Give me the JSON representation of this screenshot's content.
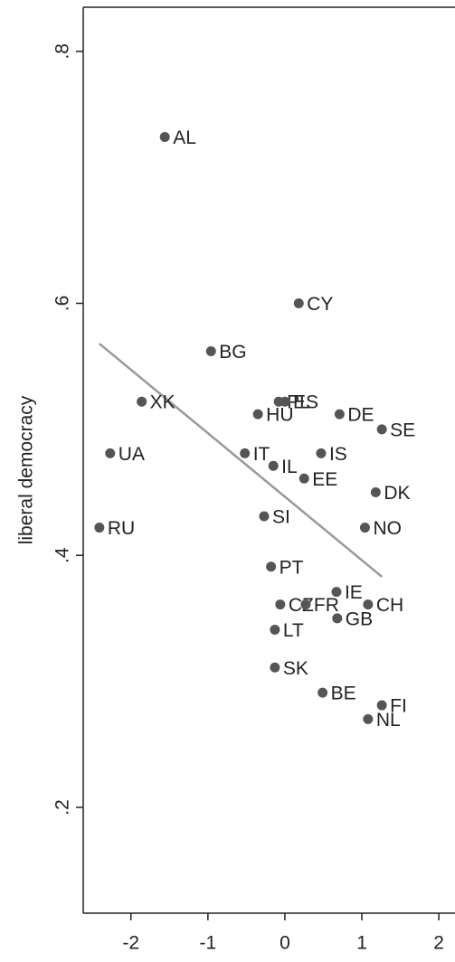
{
  "chart_data": {
    "type": "scatter",
    "ylabel": "liberal democracy",
    "xlim": [
      -2.62,
      2.21
    ],
    "ylim": [
      0.116,
      0.835
    ],
    "xticks": [
      -2,
      -1,
      0,
      1,
      2
    ],
    "yticks": [
      {
        "value": 0.2,
        "label": ".2"
      },
      {
        "value": 0.4,
        "label": ".4"
      },
      {
        "value": 0.6,
        "label": ".6"
      },
      {
        "value": 0.8,
        "label": ".8"
      }
    ],
    "color": "#555555",
    "fit_color": "#999999",
    "points": [
      {
        "label": "AL",
        "x": -1.56,
        "y": 0.732
      },
      {
        "label": "CY",
        "x": 0.18,
        "y": 0.6
      },
      {
        "label": "BG",
        "x": -0.96,
        "y": 0.562
      },
      {
        "label": "XK",
        "x": -1.86,
        "y": 0.522
      },
      {
        "label": "PL",
        "x": -0.08,
        "y": 0.522
      },
      {
        "label": "ES",
        "x": 0.0,
        "y": 0.522
      },
      {
        "label": "HU",
        "x": -0.35,
        "y": 0.512
      },
      {
        "label": "DE",
        "x": 0.71,
        "y": 0.512
      },
      {
        "label": "SE",
        "x": 1.26,
        "y": 0.5
      },
      {
        "label": "UA",
        "x": -2.27,
        "y": 0.481
      },
      {
        "label": "IT",
        "x": -0.52,
        "y": 0.481
      },
      {
        "label": "IS",
        "x": 0.47,
        "y": 0.481
      },
      {
        "label": "IL",
        "x": -0.15,
        "y": 0.471
      },
      {
        "label": "EE",
        "x": 0.25,
        "y": 0.461
      },
      {
        "label": "DK",
        "x": 1.18,
        "y": 0.45
      },
      {
        "label": "SI",
        "x": -0.27,
        "y": 0.431
      },
      {
        "label": "RU",
        "x": -2.41,
        "y": 0.422
      },
      {
        "label": "NO",
        "x": 1.04,
        "y": 0.422
      },
      {
        "label": "PT",
        "x": -0.18,
        "y": 0.391
      },
      {
        "label": "IE",
        "x": 0.67,
        "y": 0.371
      },
      {
        "label": "CZ",
        "x": -0.06,
        "y": 0.361
      },
      {
        "label": "FR",
        "x": 0.27,
        "y": 0.361
      },
      {
        "label": "CH",
        "x": 1.08,
        "y": 0.361
      },
      {
        "label": "GB",
        "x": 0.68,
        "y": 0.35
      },
      {
        "label": "LT",
        "x": -0.13,
        "y": 0.341
      },
      {
        "label": "SK",
        "x": -0.13,
        "y": 0.311
      },
      {
        "label": "BE",
        "x": 0.49,
        "y": 0.291
      },
      {
        "label": "FI",
        "x": 1.26,
        "y": 0.281
      },
      {
        "label": "NL",
        "x": 1.08,
        "y": 0.27
      }
    ],
    "fit": {
      "x": [
        -2.41,
        1.26
      ],
      "y": [
        0.568,
        0.383
      ]
    }
  }
}
